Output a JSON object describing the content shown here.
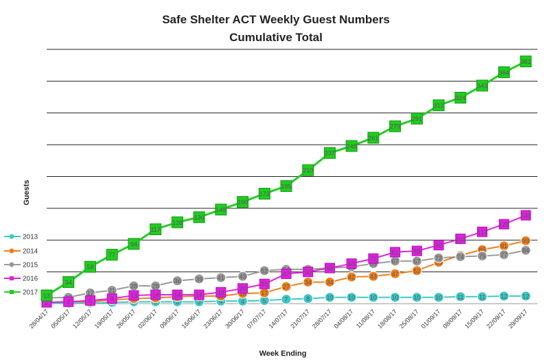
{
  "chart_data": {
    "type": "line",
    "title": "Safe Shelter ACT Weekly Guest Numbers",
    "subtitle": "Cumulative Total",
    "xlabel": "Week Ending",
    "ylabel": "Guests",
    "ylim": [
      0,
      400
    ],
    "grid": true,
    "legend_position": "left",
    "categories": [
      "28/04/17",
      "05/05/17",
      "12/05/17",
      "19/05/17",
      "26/05/17",
      "02/06/17",
      "09/06/17",
      "16/06/17",
      "23/06/17",
      "30/06/17",
      "07/07/17",
      "14/07/17",
      "21/07/17",
      "28/07/17",
      "04/08/17",
      "11/08/17",
      "18/08/17",
      "25/08/17",
      "01/09/17",
      "08/09/17",
      "15/09/17",
      "22/09/17",
      "29/09/17"
    ],
    "series": [
      {
        "name": "2013",
        "color": "#3cc8c8",
        "marker": "circle",
        "values": [
          1,
          1,
          1,
          2,
          3,
          3,
          3,
          3,
          4,
          4,
          5,
          7,
          8,
          10,
          10,
          10,
          10,
          10,
          10,
          11,
          11,
          12,
          12
        ]
      },
      {
        "name": "2014",
        "color": "#f07e1a",
        "marker": "circle",
        "values": [
          2,
          3,
          3,
          6,
          8,
          9,
          11,
          12,
          12,
          16,
          17,
          27,
          34,
          34,
          42,
          43,
          47,
          52,
          65,
          76,
          85,
          91,
          99
        ]
      },
      {
        "name": "2015",
        "color": "#999999",
        "marker": "circle",
        "values": [
          9,
          10,
          17,
          21,
          28,
          28,
          36,
          39,
          41,
          43,
          52,
          54,
          54,
          56,
          58,
          63,
          67,
          67,
          72,
          74,
          75,
          77,
          84
        ]
      },
      {
        "name": "2016",
        "color": "#e020e0",
        "marker": "square",
        "values": [
          2,
          3,
          5,
          8,
          13,
          14,
          14,
          14,
          18,
          24,
          31,
          47,
          50,
          56,
          63,
          71,
          81,
          83,
          92,
          102,
          113,
          125,
          139
        ]
      },
      {
        "name": "2017",
        "color": "#22cc22",
        "marker": "square",
        "values": [
          13,
          34,
          58,
          77,
          94,
          117,
          128,
          136,
          148,
          160,
          173,
          185,
          210,
          237,
          248,
          261,
          279,
          291,
          312,
          324,
          343,
          364,
          381
        ]
      }
    ]
  }
}
